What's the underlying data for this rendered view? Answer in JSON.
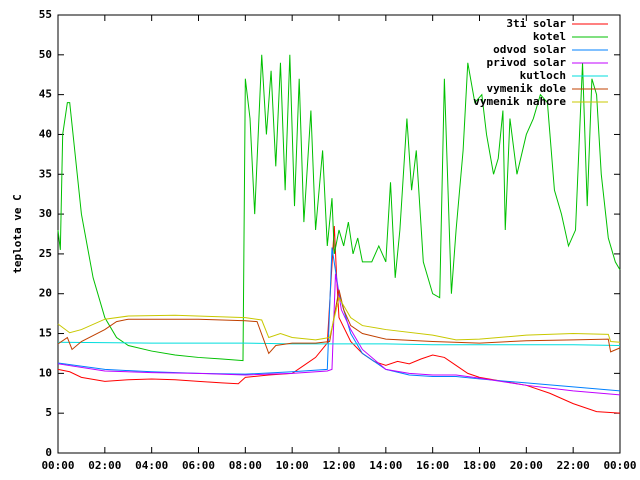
{
  "chart_data": {
    "type": "line",
    "ylabel": "teplota ve C",
    "xlim": [
      0,
      24
    ],
    "ylim": [
      0,
      55
    ],
    "xticks": [
      {
        "value": 0,
        "label": "00:00"
      },
      {
        "value": 2,
        "label": "02:00"
      },
      {
        "value": 4,
        "label": "04:00"
      },
      {
        "value": 6,
        "label": "06:00"
      },
      {
        "value": 8,
        "label": "08:00"
      },
      {
        "value": 10,
        "label": "10:00"
      },
      {
        "value": 12,
        "label": "12:00"
      },
      {
        "value": 14,
        "label": "14:00"
      },
      {
        "value": 16,
        "label": "16:00"
      },
      {
        "value": 18,
        "label": "18:00"
      },
      {
        "value": 20,
        "label": "20:00"
      },
      {
        "value": 22,
        "label": "22:00"
      },
      {
        "value": 24,
        "label": "00:00"
      }
    ],
    "yticks": [
      0,
      5,
      10,
      15,
      20,
      25,
      30,
      35,
      40,
      45,
      50,
      55
    ],
    "legend": "top-right",
    "series": [
      {
        "name": "3ti solar",
        "color": "#ff0000",
        "x": [
          0,
          0.5,
          1,
          2,
          3,
          4,
          5,
          6,
          7,
          7.7,
          8,
          9,
          10,
          10.5,
          11,
          11.5,
          11.8,
          11.9,
          12,
          12.5,
          13,
          13.5,
          14,
          14.5,
          15,
          15.5,
          16,
          16.5,
          17,
          17.5,
          18,
          19,
          20,
          21,
          22,
          23,
          24
        ],
        "values": [
          10.5,
          10.2,
          9.5,
          9.0,
          9.2,
          9.3,
          9.2,
          9.0,
          8.8,
          8.7,
          9.5,
          9.8,
          10.0,
          11,
          12,
          13.8,
          28.5,
          22,
          17,
          14,
          12.5,
          11.5,
          11,
          11.5,
          11.2,
          11.8,
          12.3,
          12,
          11,
          10,
          9.5,
          9,
          8.5,
          7.5,
          6.2,
          5.2,
          5
        ]
      },
      {
        "name": "kotel",
        "color": "#00c000",
        "x": [
          0,
          0.1,
          0.2,
          0.4,
          0.5,
          1,
          1.5,
          2,
          2.5,
          3,
          4,
          5,
          6,
          7,
          7.9,
          8.0,
          8.2,
          8.4,
          8.7,
          8.9,
          9.1,
          9.3,
          9.5,
          9.7,
          9.9,
          10.1,
          10.3,
          10.5,
          10.8,
          11.0,
          11.3,
          11.5,
          11.7,
          11.8,
          12.0,
          12.2,
          12.4,
          12.6,
          12.8,
          13.0,
          13.4,
          13.7,
          14.0,
          14.2,
          14.4,
          14.6,
          14.9,
          15.1,
          15.3,
          15.6,
          16.0,
          16.3,
          16.5,
          16.8,
          17.0,
          17.3,
          17.5,
          17.8,
          18.1,
          18.3,
          18.6,
          18.8,
          19.0,
          19.1,
          19.3,
          19.6,
          20.0,
          20.3,
          20.6,
          20.9,
          21.2,
          21.5,
          21.8,
          22.1,
          22.4,
          22.6,
          22.8,
          23.0,
          23.2,
          23.5,
          23.8,
          24
        ],
        "values": [
          28,
          25.5,
          40,
          44,
          44,
          30,
          22,
          17,
          14.5,
          13.5,
          12.8,
          12.3,
          12,
          11.8,
          11.6,
          47,
          42,
          30,
          50,
          40,
          48,
          36,
          49,
          33,
          50,
          31,
          47,
          29,
          43,
          28,
          38,
          26,
          32,
          25,
          28,
          26,
          29,
          25,
          27,
          24,
          24,
          26,
          24,
          34,
          22,
          28,
          42,
          33,
          38,
          24,
          20,
          19.5,
          47,
          20,
          28,
          38,
          49,
          44,
          45,
          40,
          35,
          37,
          43,
          28,
          42,
          35,
          40,
          42,
          45,
          44,
          33,
          30,
          26,
          28,
          49,
          31,
          47,
          45,
          35,
          27,
          24,
          23
        ]
      },
      {
        "name": "odvod solar",
        "color": "#0080ff",
        "x": [
          0,
          2,
          4,
          6,
          8,
          10,
          11.5,
          11.7,
          12,
          12.5,
          13,
          14,
          15,
          16,
          17,
          18,
          20,
          22,
          24
        ],
        "values": [
          11.3,
          10.5,
          10.2,
          10,
          9.9,
          10.2,
          10.5,
          25.8,
          20,
          15,
          12.5,
          10.5,
          9.8,
          9.6,
          9.6,
          9.3,
          8.8,
          8.3,
          7.8
        ]
      },
      {
        "name": "privod solar",
        "color": "#c000ff",
        "x": [
          0,
          2,
          4,
          6,
          8,
          10,
          11.5,
          11.7,
          11.85,
          12.1,
          12.5,
          13,
          14,
          15,
          16,
          17,
          18,
          20,
          22,
          24
        ],
        "values": [
          11.2,
          10.3,
          10.1,
          10,
          9.8,
          10,
          10.3,
          10.5,
          22.5,
          18,
          15.5,
          13,
          10.5,
          10,
          9.8,
          9.8,
          9.4,
          8.5,
          7.8,
          7.3
        ]
      },
      {
        "name": "kutloch",
        "color": "#00dddd",
        "x": [
          0,
          4,
          8,
          10,
          12,
          14,
          16,
          18,
          20,
          22,
          24
        ],
        "values": [
          13.9,
          13.8,
          13.8,
          13.7,
          13.7,
          13.7,
          13.6,
          13.6,
          13.6,
          13.6,
          13.5
        ]
      },
      {
        "name": "vymenik dole",
        "color": "#c04000",
        "x": [
          0,
          0.4,
          0.6,
          1,
          2,
          2.5,
          3,
          6,
          8,
          8.5,
          9,
          9.3,
          10,
          11,
          11.6,
          12,
          12.2,
          12.5,
          13,
          14,
          16,
          18,
          20,
          22,
          23.5,
          23.6,
          24
        ],
        "values": [
          13.7,
          14.5,
          13.0,
          14,
          15.5,
          16.5,
          16.8,
          16.8,
          16.6,
          16.5,
          12.5,
          13.5,
          13.8,
          13.8,
          14,
          20.5,
          18,
          16,
          15,
          14.3,
          14,
          13.8,
          14.1,
          14.2,
          14.3,
          12.7,
          13.2
        ]
      },
      {
        "name": "vymenik nahore",
        "color": "#c8c800",
        "x": [
          0,
          0.5,
          1,
          2,
          3,
          5,
          8,
          8.7,
          9,
          9.5,
          10,
          11,
          11.6,
          12,
          12.5,
          13,
          14,
          16,
          17,
          18,
          20,
          22,
          23.5,
          23.6,
          24
        ],
        "values": [
          16.2,
          15.1,
          15.5,
          16.8,
          17.2,
          17.3,
          17,
          16.7,
          14.5,
          15,
          14.5,
          14.2,
          14.5,
          19.5,
          17,
          16,
          15.5,
          14.8,
          14.2,
          14.3,
          14.8,
          15,
          14.9,
          14,
          13.9
        ]
      }
    ]
  }
}
